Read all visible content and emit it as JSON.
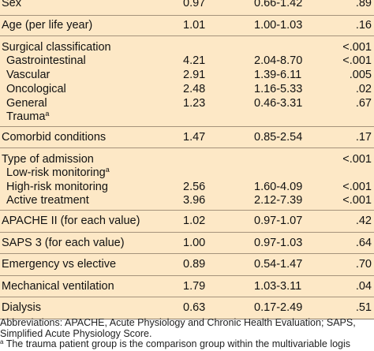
{
  "rows": [
    {
      "label": "Sex",
      "or": "0.97",
      "ci": "0.66-1.42",
      "p": ".89"
    },
    {
      "label": "Age (per life year)",
      "or": "1.01",
      "ci": "1.00-1.03",
      "p": ".16"
    },
    {
      "label": "Surgical classification",
      "or": "",
      "ci": "",
      "p": "<.001"
    },
    {
      "label": "Gastrointestinal",
      "or": "4.21",
      "ci": "2.04-8.70",
      "p": "<.001"
    },
    {
      "label": "Vascular",
      "or": "2.91",
      "ci": "1.39-6.11",
      "p": ".005"
    },
    {
      "label": "Oncological",
      "or": "2.48",
      "ci": "1.16-5.33",
      "p": ".02"
    },
    {
      "label": "General",
      "or": "1.23",
      "ci": "0.46-3.31",
      "p": ".67"
    },
    {
      "label": "Trauma",
      "sup": "a",
      "or": "",
      "ci": "",
      "p": ""
    },
    {
      "label": "Comorbid conditions",
      "or": "1.47",
      "ci": "0.85-2.54",
      "p": ".17"
    },
    {
      "label": "Type of admission",
      "or": "",
      "ci": "",
      "p": "<.001"
    },
    {
      "label": "Low-risk monitoring",
      "sup": "a",
      "or": "",
      "ci": "",
      "p": ""
    },
    {
      "label": "High-risk monitoring",
      "or": "2.56",
      "ci": "1.60-4.09",
      "p": "<.001"
    },
    {
      "label": "Active treatment",
      "or": "3.96",
      "ci": "2.12-7.39",
      "p": "<.001"
    },
    {
      "label": "APACHE II (for each value)",
      "or": "1.02",
      "ci": "0.97-1.07",
      "p": ".42"
    },
    {
      "label": "SAPS 3 (for each value)",
      "or": "1.00",
      "ci": "0.97-1.03",
      "p": ".64"
    },
    {
      "label": "Emergency vs elective",
      "or": "0.89",
      "ci": "0.54-1.47",
      "p": ".70"
    },
    {
      "label": "Mechanical ventilation",
      "or": "1.79",
      "ci": "1.03-3.11",
      "p": ".04"
    },
    {
      "label": "Dialysis",
      "or": "0.63",
      "ci": "0.17-2.49",
      "p": ".51"
    }
  ],
  "footnote": {
    "line1": "Abbreviations: APACHE, Acute Physiology and Chronic Health Evaluation; SAPS,",
    "line2": "Simplified Acute Physiology Score.",
    "line3_sup": "a",
    "line3": " The trauma patient group is the comparison group within the multivariable logis"
  },
  "colors": {
    "table_bg": "#fde8c6",
    "rule": "#a5937c"
  }
}
